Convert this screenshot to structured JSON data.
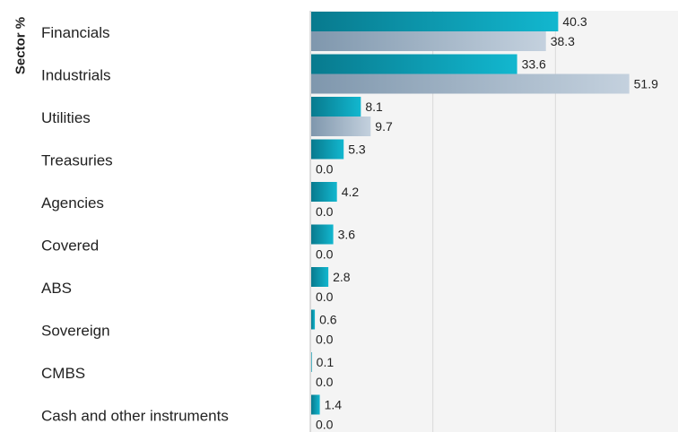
{
  "chart_data": {
    "type": "bar",
    "orientation": "horizontal",
    "ylabel": "Sector %",
    "categories": [
      "Financials",
      "Industrials",
      "Utilities",
      "Treasuries",
      "Agencies",
      "Covered",
      "ABS",
      "Sovereign",
      "CMBS",
      "Cash and other instruments"
    ],
    "series": [
      {
        "values": [
          40.3,
          33.6,
          8.1,
          5.3,
          4.2,
          3.6,
          2.8,
          0.6,
          0.1,
          1.4
        ],
        "color": "#0a9db8"
      },
      {
        "values": [
          38.3,
          51.9,
          9.7,
          0.0,
          0.0,
          0.0,
          0.0,
          0.0,
          0.0,
          0.0
        ],
        "color": "#9fb3c8"
      }
    ],
    "xlim": [
      0,
      60
    ],
    "grid": true,
    "grid_background": "#f4f4f4",
    "grid_line_color": "#d9d9d9"
  }
}
